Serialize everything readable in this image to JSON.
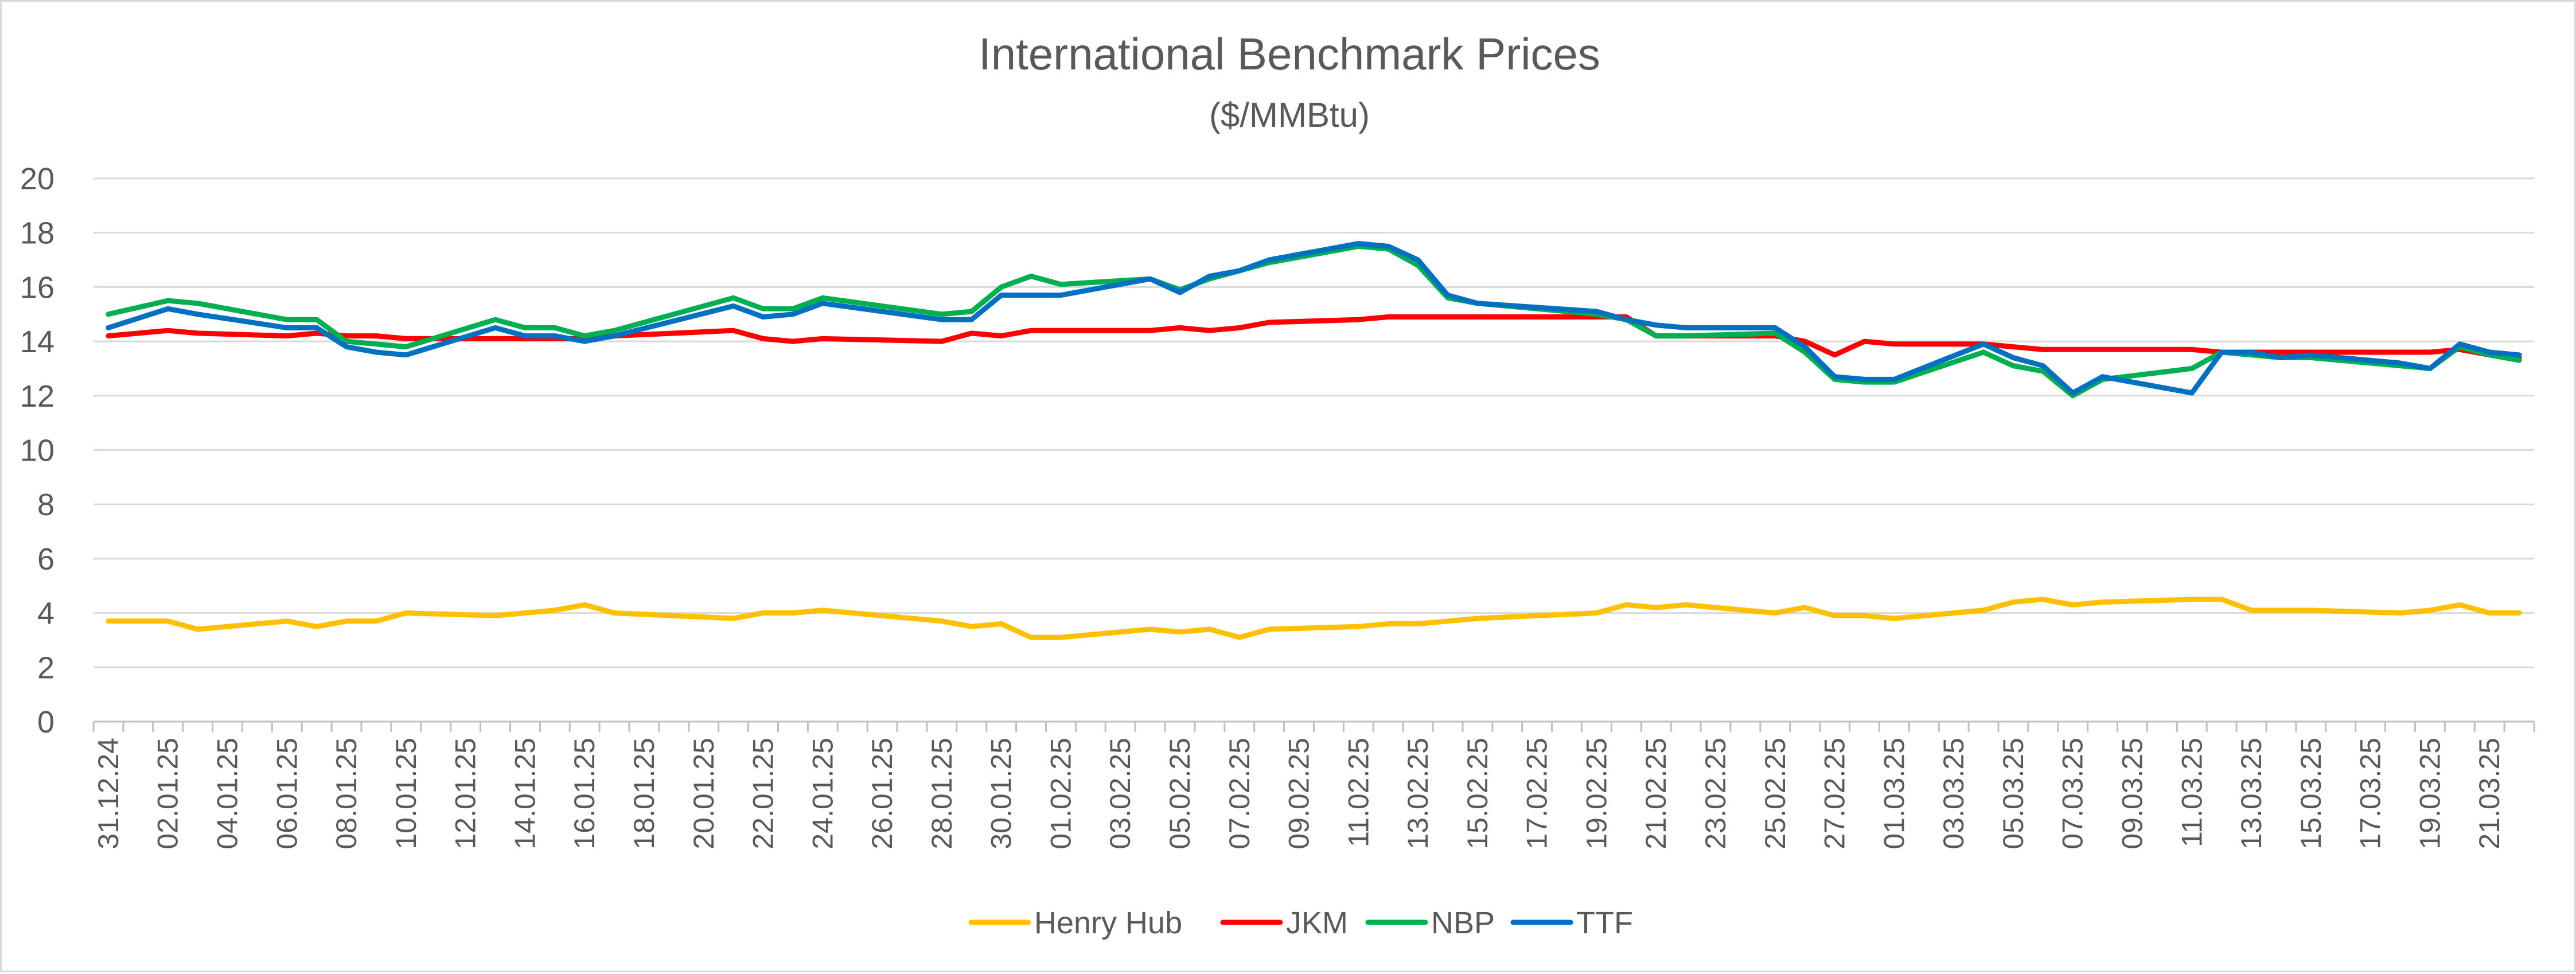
{
  "chart_data": {
    "type": "line",
    "title": "International Benchmark Prices",
    "subtitle": "($/MMBtu)",
    "xlabel": "",
    "ylabel": "",
    "ylim": [
      0,
      20
    ],
    "yticks": [
      0,
      2,
      4,
      6,
      8,
      10,
      12,
      14,
      16,
      18,
      20
    ],
    "grid": true,
    "legend_position": "bottom-center",
    "x": [
      "31.12.24",
      "02.01.25",
      "03.01.25",
      "06.01.25",
      "07.01.25",
      "08.01.25",
      "09.01.25",
      "10.01.25",
      "13.01.25",
      "14.01.25",
      "15.01.25",
      "16.01.25",
      "17.01.25",
      "21.01.25",
      "22.01.25",
      "23.01.25",
      "24.01.25",
      "27.01.25",
      "28.01.25",
      "29.01.25",
      "30.01.25",
      "31.01.25",
      "03.02.25",
      "04.02.25",
      "05.02.25",
      "06.02.25",
      "07.02.25",
      "10.02.25",
      "11.02.25",
      "12.02.25",
      "13.02.25",
      "14.02.25",
      "18.02.25",
      "19.02.25",
      "20.02.25",
      "21.02.25",
      "24.02.25",
      "25.02.25",
      "26.02.25",
      "27.02.25",
      "28.02.25",
      "03.03.25",
      "04.03.25",
      "05.03.25",
      "06.03.25",
      "07.03.25",
      "10.03.25",
      "11.03.25",
      "12.03.25",
      "13.03.25",
      "14.03.25",
      "17.03.25",
      "18.03.25",
      "19.03.25",
      "20.03.25",
      "21.03.25"
    ],
    "x_days": [
      0,
      2,
      3,
      6,
      7,
      8,
      9,
      10,
      13,
      14,
      15,
      16,
      17,
      21,
      22,
      23,
      24,
      28,
      29,
      30,
      31,
      32,
      35,
      36,
      37,
      38,
      39,
      42,
      43,
      44,
      45,
      46,
      50,
      51,
      52,
      53,
      56,
      57,
      58,
      59,
      60,
      63,
      64,
      65,
      66,
      67,
      70,
      71,
      72,
      73,
      74,
      77,
      78,
      79,
      80,
      81
    ],
    "tick_labels": [
      "31.12.24",
      "02.01.25",
      "04.01.25",
      "06.01.25",
      "08.01.25",
      "10.01.25",
      "12.01.25",
      "14.01.25",
      "16.01.25",
      "18.01.25",
      "20.01.25",
      "22.01.25",
      "24.01.25",
      "26.01.25",
      "28.01.25",
      "30.01.25",
      "01.02.25",
      "03.02.25",
      "05.02.25",
      "07.02.25",
      "09.02.25",
      "11.02.25",
      "13.02.25",
      "15.02.25",
      "17.02.25",
      "19.02.25",
      "21.02.25",
      "23.02.25",
      "25.02.25",
      "27.02.25",
      "01.03.25",
      "03.03.25",
      "05.03.25",
      "07.03.25",
      "09.03.25",
      "11.03.25",
      "13.03.25",
      "15.03.25",
      "17.03.25",
      "19.03.25",
      "21.03.25"
    ],
    "series": [
      {
        "name": "Henry Hub",
        "color": "#FFC000",
        "values": [
          3.7,
          3.7,
          3.4,
          3.7,
          3.5,
          3.7,
          3.7,
          4.0,
          3.9,
          4.0,
          4.1,
          4.3,
          4.0,
          3.8,
          4.0,
          4.0,
          4.1,
          3.7,
          3.5,
          3.6,
          3.1,
          3.1,
          3.4,
          3.3,
          3.4,
          3.1,
          3.4,
          3.5,
          3.6,
          3.6,
          3.7,
          3.8,
          4.0,
          4.3,
          4.2,
          4.3,
          4.0,
          4.2,
          3.9,
          3.9,
          3.8,
          4.1,
          4.4,
          4.5,
          4.3,
          4.4,
          4.5,
          4.5,
          4.1,
          4.1,
          4.1,
          4.0,
          4.1,
          4.3,
          4.0,
          4.0
        ]
      },
      {
        "name": "JKM",
        "color": "#FF0000",
        "values": [
          14.2,
          14.4,
          14.3,
          14.2,
          14.3,
          14.2,
          14.2,
          14.1,
          14.1,
          14.1,
          14.1,
          14.1,
          14.2,
          14.4,
          14.1,
          14.0,
          14.1,
          14.0,
          14.3,
          14.2,
          14.4,
          14.4,
          14.4,
          14.5,
          14.4,
          14.5,
          14.7,
          14.8,
          14.9,
          14.9,
          14.9,
          14.9,
          14.9,
          14.9,
          14.2,
          14.2,
          14.2,
          14.0,
          13.5,
          14.0,
          13.9,
          13.9,
          13.8,
          13.7,
          13.7,
          13.7,
          13.7,
          13.6,
          13.6,
          13.6,
          13.6,
          13.6,
          13.6,
          13.7,
          13.5,
          13.4
        ]
      },
      {
        "name": "NBP",
        "color": "#00B050",
        "values": [
          15.0,
          15.5,
          15.4,
          14.8,
          14.8,
          14.0,
          13.9,
          13.8,
          14.8,
          14.5,
          14.5,
          14.2,
          14.4,
          15.6,
          15.2,
          15.2,
          15.6,
          15.0,
          15.1,
          16.0,
          16.4,
          16.1,
          16.3,
          15.9,
          16.3,
          16.6,
          16.9,
          17.5,
          17.4,
          16.8,
          15.6,
          15.4,
          15.0,
          14.8,
          14.2,
          14.2,
          14.3,
          13.6,
          12.6,
          12.5,
          12.5,
          13.6,
          13.1,
          12.9,
          12.0,
          12.6,
          13.0,
          13.6,
          13.5,
          13.4,
          13.4,
          13.1,
          13.0,
          13.8,
          13.5,
          13.3
        ]
      },
      {
        "name": "TTF",
        "color": "#0070C0",
        "values": [
          14.5,
          15.2,
          15.0,
          14.5,
          14.5,
          13.8,
          13.6,
          13.5,
          14.5,
          14.2,
          14.2,
          14.0,
          14.2,
          15.3,
          14.9,
          15.0,
          15.4,
          14.8,
          14.8,
          15.7,
          15.7,
          15.7,
          16.3,
          15.8,
          16.4,
          16.6,
          17.0,
          17.6,
          17.5,
          17.0,
          15.7,
          15.4,
          15.1,
          14.8,
          14.6,
          14.5,
          14.5,
          13.8,
          12.7,
          12.6,
          12.6,
          13.9,
          13.4,
          13.1,
          12.1,
          12.7,
          12.1,
          13.6,
          13.6,
          13.4,
          13.5,
          13.2,
          13.0,
          13.9,
          13.6,
          13.5
        ]
      }
    ]
  }
}
